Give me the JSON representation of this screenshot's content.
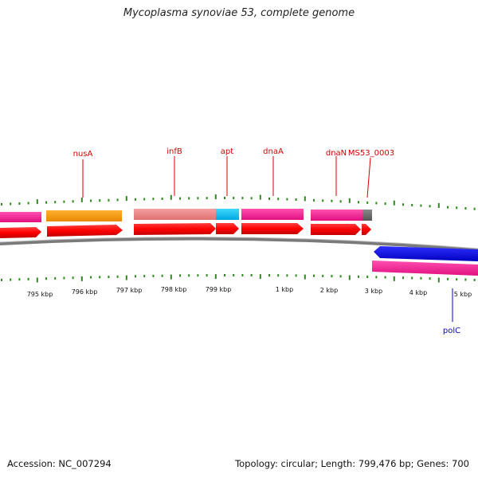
{
  "title": "Mycoplasma synoviae 53, complete genome",
  "accession": "Accession: NC_007294",
  "topology": "Topology: circular; Length: 799,476 bp; Genes: 700",
  "gene_labels": [
    {
      "id": "nusA",
      "label": "nusA",
      "strand": "forward"
    },
    {
      "id": "infB",
      "label": "infB",
      "strand": "forward"
    },
    {
      "id": "apt",
      "label": "apt",
      "strand": "forward"
    },
    {
      "id": "dnaA",
      "label": "dnaA",
      "strand": "forward"
    },
    {
      "id": "dnaN",
      "label": "dnaN",
      "strand": "forward"
    },
    {
      "id": "MS53_0003",
      "label": "MS53_0003",
      "strand": "forward"
    },
    {
      "id": "polC",
      "label": "polC",
      "strand": "reverse"
    }
  ],
  "position_labels": [
    "795 kbp",
    "796 kbp",
    "797 kbp",
    "798 kbp",
    "799 kbp",
    "1 kbp",
    "2 kbp",
    "3 kbp",
    "4 kbp",
    "5 kbp"
  ],
  "colors": {
    "gene_label_forward": "#d40000",
    "gene_label_reverse": "#0000cc",
    "tick": "#2a8a1a",
    "backbone": "#808080",
    "cds_red": "#ff0000",
    "nusA": "#ff9900",
    "infB": "#f08080",
    "apt": "#00bfff",
    "dnaA": "#ff1493",
    "dnaN": "#ff1493",
    "MS53_0003": "#707070",
    "polC": "#0000ff",
    "polC_feature": "#ff1493"
  }
}
